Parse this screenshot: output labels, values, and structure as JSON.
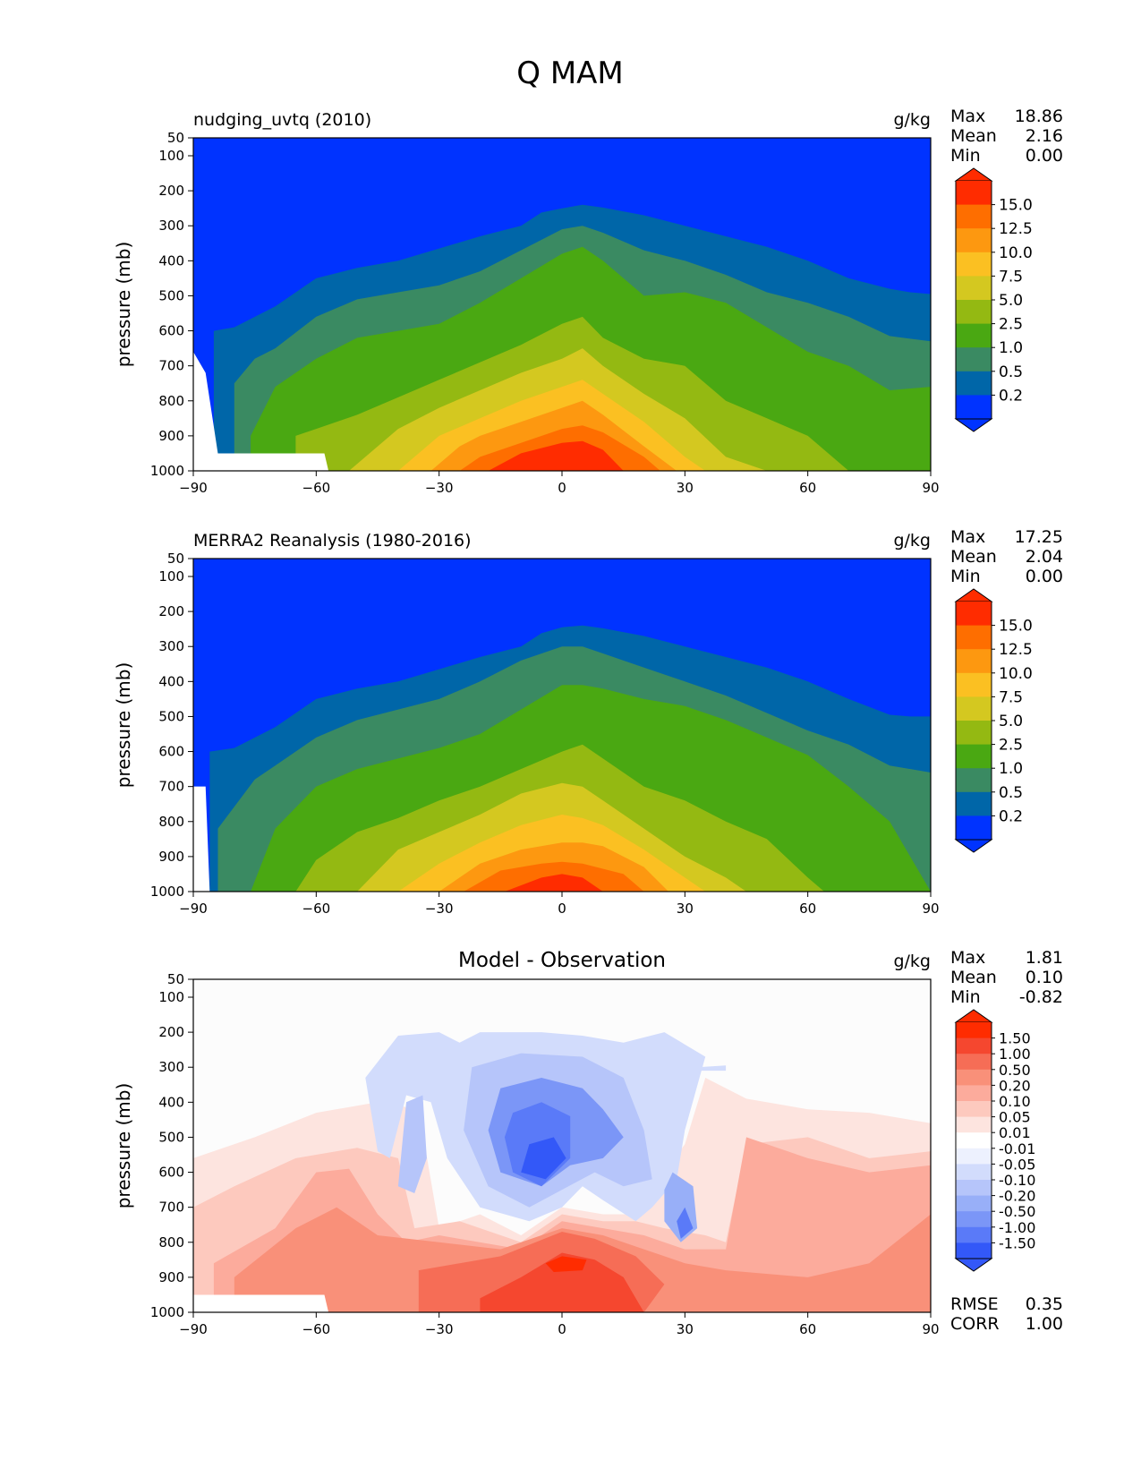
{
  "title": "Q MAM",
  "colors": {
    "q_levels": [
      "#0033ff",
      "#0066a8",
      "#3a8a62",
      "#4aa812",
      "#94b912",
      "#d4c820",
      "#fbc022",
      "#fd9810",
      "#fe6e00",
      "#ff2c00"
    ],
    "diff_levels": [
      "#1b38f5",
      "#3358f8",
      "#5a7af8",
      "#7b96f7",
      "#98aff8",
      "#b6c5fa",
      "#d2dcfc",
      "#edf1fe",
      "#ffffff",
      "#fde4df",
      "#fdc9be",
      "#fcab9c",
      "#f99079",
      "#f66d56",
      "#f5472f",
      "#ff2c00"
    ]
  },
  "chart_data": [
    {
      "type": "contour",
      "id": "model",
      "title_left": "nudging_uvtq (2010)",
      "units": "g/kg",
      "xlabel": "",
      "ylabel": "pressure (mb)",
      "xlim": [
        -90,
        90
      ],
      "ylim": [
        1000,
        50
      ],
      "xticks": [
        -90,
        -60,
        -30,
        0,
        30,
        60,
        90
      ],
      "xticklabels": [
        "−90",
        "−60",
        "−30",
        "0",
        "30",
        "60",
        "90"
      ],
      "yticks": [
        50,
        100,
        200,
        300,
        400,
        500,
        600,
        700,
        800,
        900,
        1000
      ],
      "yticklabels": [
        "50",
        "100",
        "200",
        "300",
        "400",
        "500",
        "600",
        "700",
        "800",
        "900",
        "1000"
      ],
      "stats": [
        {
          "label": "Max",
          "value": "18.86"
        },
        {
          "label": "Mean",
          "value": "2.16"
        },
        {
          "label": "Min",
          "value": "0.00"
        }
      ],
      "colorbar": {
        "ticks": [
          "15.0",
          "12.5",
          "10.0",
          "7.5",
          "5.0",
          "2.5",
          "1.0",
          "0.5",
          "0.2"
        ]
      },
      "missing_region_note": "white = below surface",
      "contour_thresholds": [
        0.2,
        0.5,
        1.0,
        2.5,
        5.0,
        7.5,
        10.0,
        12.5,
        15.0
      ],
      "contour_boundaries_pressure_mb": [
        {
          "level": 0.2,
          "lat": [
            -85,
            -80,
            -70,
            -60,
            -50,
            -40,
            -30,
            -20,
            -10,
            -5,
            0,
            5,
            10,
            20,
            30,
            40,
            50,
            60,
            70,
            80,
            85,
            90
          ],
          "p": [
            600,
            590,
            530,
            450,
            420,
            400,
            365,
            330,
            300,
            262,
            250,
            240,
            248,
            270,
            300,
            330,
            360,
            400,
            450,
            480,
            490,
            495
          ]
        },
        {
          "level": 0.5,
          "lat": [
            -80,
            -75,
            -70,
            -60,
            -50,
            -40,
            -30,
            -20,
            -10,
            0,
            5,
            10,
            20,
            30,
            40,
            50,
            60,
            70,
            80,
            90
          ],
          "p": [
            750,
            680,
            650,
            560,
            510,
            490,
            470,
            430,
            370,
            310,
            300,
            320,
            370,
            400,
            440,
            490,
            520,
            560,
            615,
            630
          ]
        },
        {
          "level": 1.0,
          "lat": [
            -76,
            -70,
            -60,
            -50,
            -40,
            -30,
            -20,
            -10,
            0,
            5,
            10,
            20,
            30,
            40,
            50,
            60,
            70,
            80,
            90
          ],
          "p": [
            900,
            760,
            680,
            620,
            600,
            580,
            520,
            450,
            380,
            360,
            400,
            500,
            490,
            520,
            590,
            660,
            700,
            770,
            760
          ]
        },
        {
          "level": 2.5,
          "lat": [
            -65,
            -60,
            -50,
            -40,
            -30,
            -20,
            -10,
            0,
            5,
            10,
            20,
            30,
            40,
            50,
            60,
            70,
            80,
            90
          ],
          "p": [
            900,
            880,
            840,
            790,
            740,
            690,
            640,
            580,
            560,
            620,
            680,
            700,
            800,
            850,
            900,
            1000,
            1000,
            1000
          ]
        },
        {
          "level": 5.0,
          "lat": [
            -52,
            -40,
            -30,
            -20,
            -10,
            0,
            5,
            10,
            20,
            30,
            40,
            50
          ],
          "p": [
            1000,
            880,
            820,
            770,
            720,
            680,
            650,
            700,
            780,
            850,
            960,
            1000
          ]
        },
        {
          "level": 7.5,
          "lat": [
            -40,
            -30,
            -20,
            -10,
            0,
            5,
            10,
            20,
            30,
            35
          ],
          "p": [
            1000,
            900,
            850,
            800,
            760,
            740,
            780,
            860,
            960,
            1000
          ]
        },
        {
          "level": 10.0,
          "lat": [
            -32,
            -25,
            -20,
            -10,
            0,
            5,
            10,
            20,
            28
          ],
          "p": [
            1000,
            930,
            900,
            860,
            820,
            800,
            840,
            930,
            1000
          ]
        },
        {
          "level": 12.5,
          "lat": [
            -25,
            -20,
            -10,
            0,
            5,
            10,
            20,
            24
          ],
          "p": [
            1000,
            960,
            920,
            880,
            870,
            890,
            960,
            1000
          ]
        },
        {
          "level": 15.0,
          "lat": [
            -18,
            -10,
            0,
            5,
            10,
            15
          ],
          "p": [
            1000,
            950,
            920,
            915,
            940,
            1000
          ]
        }
      ]
    },
    {
      "type": "contour",
      "id": "obs",
      "title_left": "MERRA2 Reanalysis (1980-2016)",
      "units": "g/kg",
      "xlabel": "",
      "ylabel": "pressure (mb)",
      "xlim": [
        -90,
        90
      ],
      "ylim": [
        1000,
        50
      ],
      "xticks": [
        -90,
        -60,
        -30,
        0,
        30,
        60,
        90
      ],
      "xticklabels": [
        "−90",
        "−60",
        "−30",
        "0",
        "30",
        "60",
        "90"
      ],
      "yticks": [
        50,
        100,
        200,
        300,
        400,
        500,
        600,
        700,
        800,
        900,
        1000
      ],
      "yticklabels": [
        "50",
        "100",
        "200",
        "300",
        "400",
        "500",
        "600",
        "700",
        "800",
        "900",
        "1000"
      ],
      "stats": [
        {
          "label": "Max",
          "value": "17.25"
        },
        {
          "label": "Mean",
          "value": "2.04"
        },
        {
          "label": "Min",
          "value": "0.00"
        }
      ],
      "colorbar": {
        "ticks": [
          "15.0",
          "12.5",
          "10.0",
          "7.5",
          "5.0",
          "2.5",
          "1.0",
          "0.5",
          "0.2"
        ]
      },
      "missing_region_note": "white = below surface",
      "contour_thresholds": [
        0.2,
        0.5,
        1.0,
        2.5,
        5.0,
        7.5,
        10.0,
        12.5,
        15.0
      ],
      "contour_boundaries_pressure_mb": [
        {
          "level": 0.2,
          "lat": [
            -86,
            -80,
            -70,
            -60,
            -50,
            -40,
            -30,
            -20,
            -10,
            -5,
            0,
            5,
            10,
            20,
            30,
            40,
            50,
            60,
            70,
            80,
            85,
            90
          ],
          "p": [
            600,
            590,
            530,
            450,
            420,
            400,
            365,
            330,
            300,
            262,
            245,
            240,
            248,
            270,
            300,
            330,
            360,
            400,
            450,
            495,
            500,
            500
          ]
        },
        {
          "level": 0.5,
          "lat": [
            -84,
            -75,
            -70,
            -60,
            -50,
            -40,
            -30,
            -20,
            -10,
            0,
            5,
            10,
            20,
            30,
            40,
            50,
            60,
            70,
            80,
            90
          ],
          "p": [
            820,
            680,
            640,
            560,
            510,
            480,
            450,
            400,
            340,
            300,
            300,
            320,
            360,
            400,
            440,
            490,
            540,
            580,
            640,
            660
          ]
        },
        {
          "level": 1.0,
          "lat": [
            -76,
            -70,
            -60,
            -50,
            -40,
            -30,
            -20,
            -10,
            0,
            5,
            10,
            20,
            30,
            40,
            50,
            60,
            70,
            80,
            90
          ],
          "p": [
            1000,
            820,
            700,
            650,
            620,
            590,
            550,
            480,
            410,
            410,
            420,
            450,
            470,
            510,
            560,
            610,
            700,
            800,
            1000
          ]
        },
        {
          "level": 2.5,
          "lat": [
            -65,
            -60,
            -50,
            -40,
            -30,
            -20,
            -10,
            0,
            5,
            10,
            20,
            30,
            40,
            50,
            60,
            64
          ],
          "p": [
            1000,
            910,
            830,
            790,
            740,
            700,
            650,
            600,
            580,
            620,
            700,
            740,
            800,
            850,
            960,
            1000
          ]
        },
        {
          "level": 5.0,
          "lat": [
            -50,
            -40,
            -30,
            -20,
            -10,
            0,
            5,
            10,
            20,
            30,
            40,
            45
          ],
          "p": [
            1000,
            880,
            830,
            780,
            720,
            690,
            700,
            740,
            820,
            900,
            960,
            1000
          ]
        },
        {
          "level": 7.5,
          "lat": [
            -40,
            -30,
            -20,
            -10,
            0,
            5,
            10,
            20,
            30,
            35
          ],
          "p": [
            1000,
            920,
            860,
            810,
            780,
            790,
            810,
            880,
            960,
            1000
          ]
        },
        {
          "level": 10.0,
          "lat": [
            -30,
            -20,
            -10,
            0,
            5,
            10,
            20,
            26
          ],
          "p": [
            1000,
            920,
            880,
            860,
            860,
            870,
            930,
            1000
          ]
        },
        {
          "level": 12.5,
          "lat": [
            -24,
            -15,
            -5,
            0,
            5,
            15,
            20
          ],
          "p": [
            1000,
            940,
            920,
            915,
            920,
            950,
            1000
          ]
        },
        {
          "level": 15.0,
          "lat": [
            -14,
            -5,
            0,
            5,
            10
          ],
          "p": [
            1000,
            960,
            950,
            960,
            1000
          ]
        }
      ]
    },
    {
      "type": "contour",
      "id": "diff",
      "title_center": "Model - Observation",
      "units": "g/kg",
      "xlabel": "",
      "ylabel": "pressure (mb)",
      "xlim": [
        -90,
        90
      ],
      "ylim": [
        1000,
        50
      ],
      "xticks": [
        -90,
        -60,
        -30,
        0,
        30,
        60,
        90
      ],
      "xticklabels": [
        "−90",
        "−60",
        "−30",
        "0",
        "30",
        "60",
        "90"
      ],
      "yticks": [
        50,
        100,
        200,
        300,
        400,
        500,
        600,
        700,
        800,
        900,
        1000
      ],
      "yticklabels": [
        "50",
        "100",
        "200",
        "300",
        "400",
        "500",
        "600",
        "700",
        "800",
        "900",
        "1000"
      ],
      "stats": [
        {
          "label": "Max",
          "value": "1.81"
        },
        {
          "label": "Mean",
          "value": "0.10"
        },
        {
          "label": "Min",
          "value": "-0.82"
        }
      ],
      "colorbar": {
        "ticks": [
          "1.50",
          "1.00",
          "0.50",
          "0.20",
          "0.10",
          "0.05",
          "0.01",
          "-0.01",
          "-0.05",
          "-0.10",
          "-0.20",
          "-0.50",
          "-1.00",
          "-1.50"
        ]
      },
      "rmse": {
        "label": "RMSE",
        "value": "0.35"
      },
      "corr": {
        "label": "CORR",
        "value": "1.00"
      }
    }
  ]
}
